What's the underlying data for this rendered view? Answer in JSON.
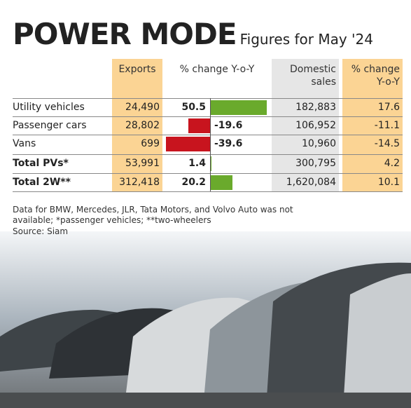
{
  "header": {
    "title": "POWER MODE",
    "subtitle": "Figures for May '24"
  },
  "table": {
    "columns": [
      "Exports",
      "% change Y-o-Y",
      "Domestic sales",
      "% change Y-o-Y"
    ],
    "rows": [
      {
        "label": "Utility vehicles",
        "exports": "24,490",
        "yoy": 50.5,
        "domestic": "182,883",
        "domestic_yoy": 17.6
      },
      {
        "label": "Passenger cars",
        "exports": "28,802",
        "yoy": -19.6,
        "domestic": "106,952",
        "domestic_yoy": -11.1
      },
      {
        "label": "Vans",
        "exports": "699",
        "yoy": -39.6,
        "domestic": "10,960",
        "domestic_yoy": -14.5
      },
      {
        "label": "Total PVs*",
        "exports": "53,991",
        "yoy": 1.4,
        "domestic": "300,795",
        "domestic_yoy": 4.2
      },
      {
        "label": "Total 2W**",
        "exports": "312,418",
        "yoy": 20.2,
        "domestic": "1,620,084",
        "domestic_yoy": 10.1
      }
    ],
    "bar_colors": {
      "positive": "#6aaa2c",
      "negative": "#c8141e"
    }
  },
  "footnote": "Data for BMW, Mercedes, JLR, Tata Motors, and Volvo Auto was not available; *passenger vehicles; **two-wheelers",
  "source": "Source: Siam"
}
